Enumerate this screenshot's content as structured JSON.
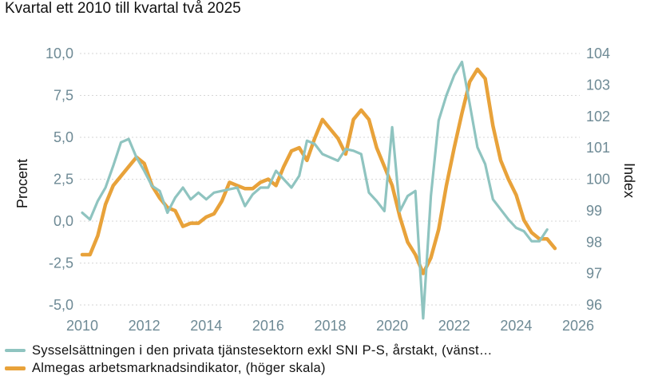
{
  "subtitle": "Kvartal ett 2010 till kvartal två 2025",
  "chart_data": {
    "type": "line",
    "title": "",
    "x_range": [
      2010,
      2026
    ],
    "x_ticks": [
      2010,
      2012,
      2014,
      2016,
      2018,
      2020,
      2022,
      2024,
      2026
    ],
    "left_axis": {
      "label": "Procent",
      "range": [
        -5,
        10
      ],
      "ticks": [
        -5,
        -2.5,
        0,
        2.5,
        5,
        7.5,
        10
      ],
      "tick_labels": [
        "-5,0",
        "-2,5",
        "0,0",
        "2,5",
        "5,0",
        "7,5",
        "10,0"
      ]
    },
    "right_axis": {
      "label": "Index",
      "range": [
        96,
        104
      ],
      "ticks": [
        96,
        97,
        98,
        99,
        100,
        101,
        102,
        103,
        104
      ],
      "tick_labels": [
        "96",
        "97",
        "98",
        "99",
        "100",
        "101",
        "102",
        "103",
        "104"
      ]
    },
    "grid": "horizontal",
    "legend_position": "bottom",
    "series": [
      {
        "name": "Sysselsättningen i den privata tjänstesektorn exkl SNI P-S, årstakt, (vänst…",
        "axis": "left",
        "color": "#8fc4c0",
        "x": [
          2010.0,
          2010.25,
          2010.5,
          2010.75,
          2011.0,
          2011.25,
          2011.5,
          2011.75,
          2012.0,
          2012.25,
          2012.5,
          2012.75,
          2013.0,
          2013.25,
          2013.5,
          2013.75,
          2014.0,
          2014.25,
          2014.5,
          2014.75,
          2015.0,
          2015.25,
          2015.5,
          2015.75,
          2016.0,
          2016.25,
          2016.5,
          2016.75,
          2017.0,
          2017.25,
          2017.5,
          2017.75,
          2018.0,
          2018.25,
          2018.5,
          2018.75,
          2019.0,
          2019.25,
          2019.5,
          2019.75,
          2020.0,
          2020.25,
          2020.5,
          2020.75,
          2021.0,
          2021.25,
          2021.5,
          2021.75,
          2022.0,
          2022.25,
          2022.5,
          2022.75,
          2023.0,
          2023.25,
          2023.5,
          2023.75,
          2024.0,
          2024.25,
          2024.5,
          2024.75,
          2025.0
        ],
        "values": [
          0.5,
          0.1,
          1.2,
          2.0,
          3.3,
          4.7,
          4.9,
          3.8,
          3.0,
          2.1,
          1.8,
          0.5,
          1.4,
          2.0,
          1.3,
          1.7,
          1.3,
          1.7,
          1.8,
          1.9,
          2.0,
          0.9,
          1.6,
          2.0,
          2.0,
          3.0,
          2.5,
          2.0,
          2.7,
          4.8,
          4.6,
          4.0,
          3.8,
          3.6,
          4.3,
          4.2,
          4.0,
          1.7,
          1.2,
          0.6,
          5.6,
          0.6,
          1.5,
          1.8,
          -5.8,
          1.5,
          6.0,
          7.5,
          8.7,
          9.5,
          7.0,
          4.4,
          3.4,
          1.3,
          0.7,
          0.1,
          -0.4,
          -0.6,
          -1.2,
          -1.2,
          -0.5
        ]
      },
      {
        "name": "Almegas arbetsmarknadsindikator, (höger skala)",
        "axis": "right",
        "color": "#e8a23a",
        "x": [
          2010.0,
          2010.25,
          2010.5,
          2010.75,
          2011.0,
          2011.25,
          2011.5,
          2011.75,
          2012.0,
          2012.25,
          2012.5,
          2012.75,
          2013.0,
          2013.25,
          2013.5,
          2013.75,
          2014.0,
          2014.25,
          2014.5,
          2014.75,
          2015.0,
          2015.25,
          2015.5,
          2015.75,
          2016.0,
          2016.25,
          2016.5,
          2016.75,
          2017.0,
          2017.25,
          2017.5,
          2017.75,
          2018.0,
          2018.25,
          2018.5,
          2018.75,
          2019.0,
          2019.25,
          2019.5,
          2019.75,
          2020.0,
          2020.25,
          2020.5,
          2020.75,
          2021.0,
          2021.25,
          2021.5,
          2021.75,
          2022.0,
          2022.25,
          2022.5,
          2022.75,
          2023.0,
          2023.25,
          2023.5,
          2023.75,
          2024.0,
          2024.25,
          2024.5,
          2024.75,
          2025.0,
          2025.25
        ],
        "values": [
          97.6,
          97.6,
          98.2,
          99.2,
          99.8,
          100.1,
          100.4,
          100.7,
          100.5,
          99.8,
          99.4,
          99.1,
          99.0,
          98.5,
          98.6,
          98.6,
          98.8,
          98.9,
          99.3,
          99.9,
          99.8,
          99.7,
          99.7,
          99.9,
          100.0,
          99.8,
          100.4,
          100.9,
          101.0,
          100.6,
          101.3,
          101.9,
          101.6,
          101.3,
          100.8,
          101.9,
          102.2,
          101.9,
          101.0,
          100.4,
          99.8,
          98.8,
          98.0,
          97.6,
          97.0,
          97.5,
          98.4,
          99.8,
          101.0,
          102.1,
          103.1,
          103.5,
          103.2,
          101.7,
          100.6,
          100.0,
          99.5,
          98.7,
          98.3,
          98.1,
          98.1,
          97.8
        ]
      }
    ]
  }
}
